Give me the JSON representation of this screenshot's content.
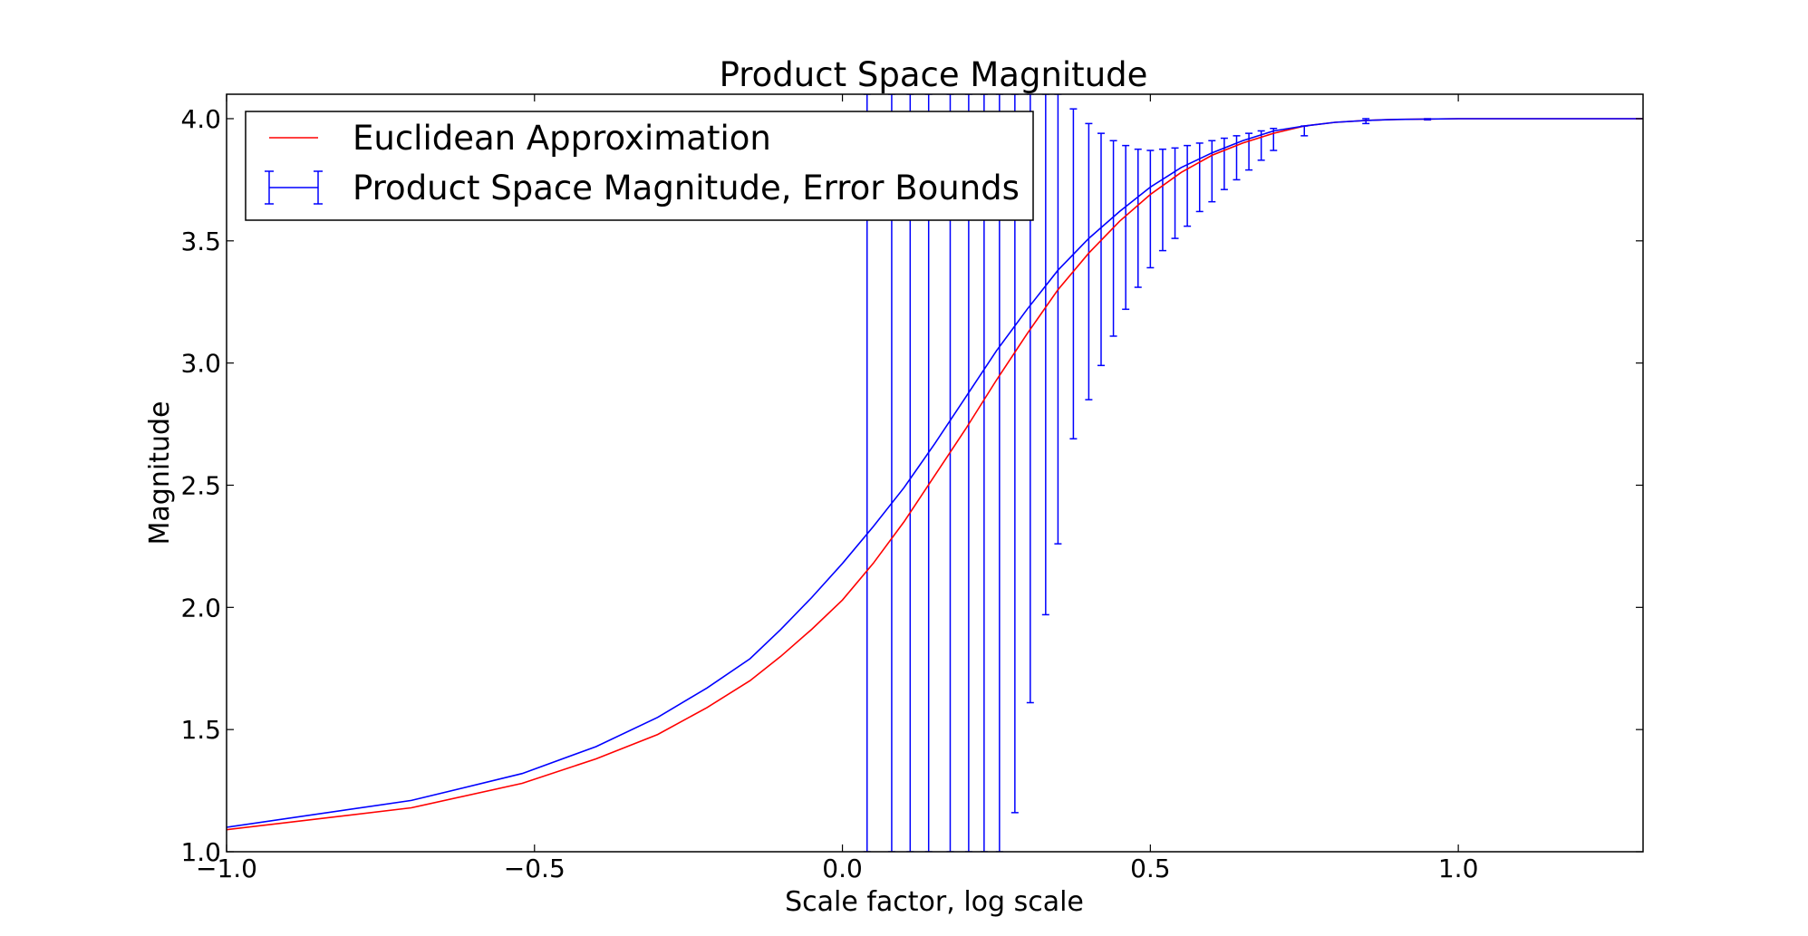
{
  "chart_data": {
    "type": "line",
    "title": "Product Space Magnitude",
    "xlabel": "Scale factor, log scale",
    "ylabel": "Magnitude",
    "xlim": [
      -1.0,
      1.3
    ],
    "ylim": [
      1.0,
      4.1
    ],
    "xticks": [
      -1.0,
      -0.5,
      0.0,
      0.5,
      1.0
    ],
    "xtick_labels": [
      "−1.0",
      "−0.5",
      "0.0",
      "0.5",
      "1.0"
    ],
    "yticks": [
      1.0,
      1.5,
      2.0,
      2.5,
      3.0,
      3.5,
      4.0
    ],
    "ytick_labels": [
      "1.0",
      "1.5",
      "2.0",
      "2.5",
      "3.0",
      "3.5",
      "4.0"
    ],
    "grid": false,
    "legend_position": "top-left",
    "series": [
      {
        "name": "Euclidean Approximation",
        "color": "#ff0000",
        "x": [
          -1.0,
          -0.7,
          -0.52,
          -0.4,
          -0.3,
          -0.22,
          -0.15,
          -0.1,
          -0.05,
          0.0,
          0.05,
          0.1,
          0.15,
          0.2,
          0.25,
          0.3,
          0.35,
          0.4,
          0.45,
          0.5,
          0.55,
          0.6,
          0.65,
          0.7,
          0.75,
          0.8,
          0.85,
          0.9,
          1.0,
          1.1,
          1.2,
          1.3
        ],
        "y": [
          1.09,
          1.18,
          1.28,
          1.38,
          1.48,
          1.59,
          1.7,
          1.8,
          1.91,
          2.03,
          2.18,
          2.35,
          2.54,
          2.73,
          2.93,
          3.12,
          3.3,
          3.45,
          3.58,
          3.69,
          3.78,
          3.85,
          3.9,
          3.94,
          3.97,
          3.985,
          3.993,
          3.997,
          4.0,
          4.0,
          4.0,
          4.0
        ]
      },
      {
        "name": "Product Space Magnitude, Error Bounds",
        "color": "#0000ff",
        "x": [
          -1.0,
          -0.7,
          -0.52,
          -0.4,
          -0.3,
          -0.22,
          -0.15,
          -0.1,
          -0.05,
          0.0,
          0.05,
          0.1,
          0.15,
          0.2,
          0.25,
          0.3,
          0.35,
          0.4,
          0.45,
          0.5,
          0.55,
          0.6,
          0.65,
          0.7,
          0.75,
          0.8,
          0.85,
          0.9,
          1.0,
          1.1,
          1.2,
          1.3
        ],
        "y": [
          1.1,
          1.21,
          1.32,
          1.43,
          1.55,
          1.67,
          1.79,
          1.91,
          2.04,
          2.18,
          2.33,
          2.49,
          2.67,
          2.86,
          3.05,
          3.22,
          3.38,
          3.51,
          3.62,
          3.72,
          3.8,
          3.86,
          3.91,
          3.95,
          3.97,
          3.985,
          3.993,
          3.997,
          4.0,
          4.0,
          4.0,
          4.0
        ],
        "error_bars": {
          "x": [
            0.04,
            0.08,
            0.11,
            0.14,
            0.175,
            0.205,
            0.23,
            0.255,
            0.28,
            0.305,
            0.33,
            0.35,
            0.375,
            0.4,
            0.42,
            0.44,
            0.46,
            0.48,
            0.5,
            0.52,
            0.54,
            0.56,
            0.58,
            0.6,
            0.62,
            0.64,
            0.66,
            0.68,
            0.7,
            0.75,
            0.85,
            0.95
          ],
          "lower": [
            1.0,
            1.0,
            1.0,
            1.0,
            1.0,
            1.0,
            1.0,
            1.0,
            1.16,
            1.61,
            1.97,
            2.26,
            2.69,
            2.85,
            2.99,
            3.11,
            3.22,
            3.31,
            3.39,
            3.46,
            3.51,
            3.56,
            3.62,
            3.66,
            3.71,
            3.75,
            3.79,
            3.83,
            3.87,
            3.93,
            3.98,
            3.995
          ],
          "upper": [
            4.1,
            4.1,
            4.1,
            4.1,
            4.1,
            4.1,
            4.1,
            4.1,
            4.1,
            4.1,
            4.1,
            4.1,
            4.04,
            3.98,
            3.94,
            3.91,
            3.89,
            3.875,
            3.87,
            3.875,
            3.88,
            3.89,
            3.9,
            3.91,
            3.92,
            3.93,
            3.94,
            3.95,
            3.96,
            3.97,
            4.0,
            4.0
          ]
        }
      }
    ]
  }
}
